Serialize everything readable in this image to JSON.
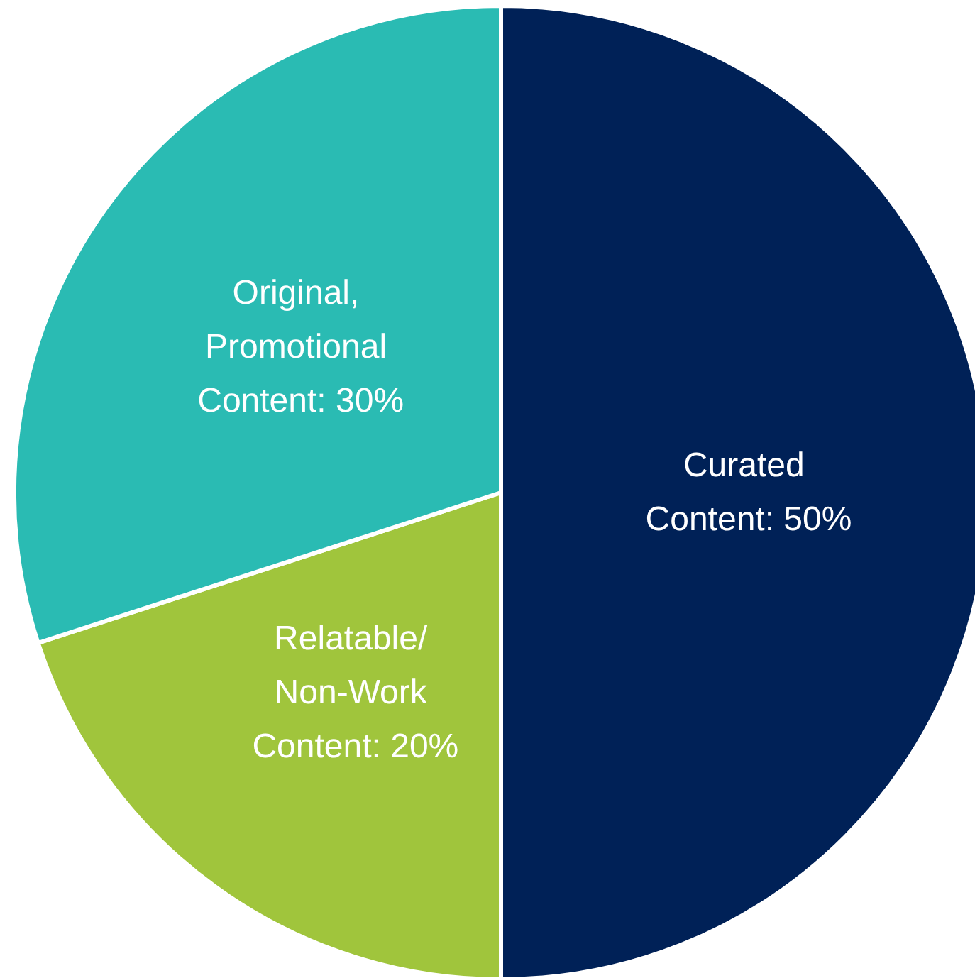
{
  "chart_data": {
    "type": "pie",
    "categories": [
      "Curated Content",
      "Relatable/ Non-Work Content",
      "Original, Promotional Content"
    ],
    "values": [
      50,
      20,
      30
    ],
    "value_labels": [
      "50%",
      "20%",
      "30%"
    ],
    "colors": [
      "#002157",
      "#a0c53c",
      "#2abbb3"
    ],
    "legend": false
  }
}
